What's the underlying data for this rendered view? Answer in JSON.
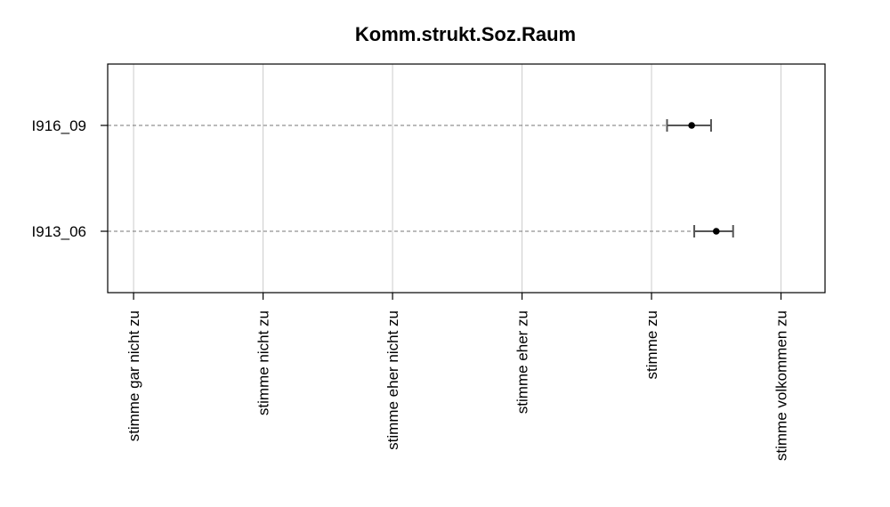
{
  "chart_data": {
    "type": "dot-errorbar",
    "title": "Komm.strukt.Soz.Raum",
    "x_categories": [
      "stimme gar nicht zu",
      "stimme nicht zu",
      "stimme eher nicht zu",
      "stimme eher zu",
      "stimme zu",
      "stimme volkommen zu"
    ],
    "xlim": [
      0.8,
      6.34
    ],
    "grid": "vertical",
    "items": [
      {
        "label": "I916_09",
        "mean": 5.31,
        "lower": 5.12,
        "upper": 5.46
      },
      {
        "label": "I913_06",
        "mean": 5.5,
        "lower": 5.33,
        "upper": 5.63
      }
    ],
    "colors": {
      "point": "#000000",
      "errorbar": "#555555",
      "grid": "#cccccc",
      "guide": "#777777"
    }
  }
}
